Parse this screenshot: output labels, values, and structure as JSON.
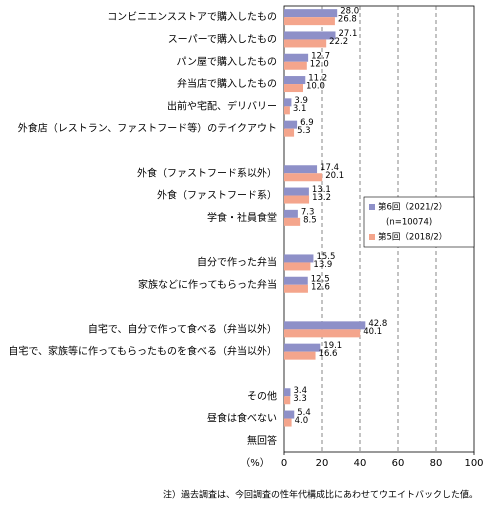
{
  "chart_data": {
    "type": "hbar",
    "categories": [
      "コンビニエンスストアで購入したもの",
      "スーパーで購入したもの",
      "パン屋で購入したもの",
      "弁当店で購入したもの",
      "出前や宅配、デリバリー",
      "外食店（レストラン、ファストフード等）のテイクアウト",
      null,
      "外食（ファストフード系以外）",
      "外食（ファストフード系）",
      "学食・社員食堂",
      null,
      "自分で作った弁当",
      "家族などに作ってもらった弁当",
      null,
      "自宅で、自分で作って食べる（弁当以外）",
      "自宅で、家族等に作ってもらったものを食べる（弁当以外）",
      null,
      "その他",
      "昼食は食べない",
      "無回答"
    ],
    "series": [
      {
        "name": "第6回（2021/2）",
        "color": "#8e90c8",
        "values": [
          28.0,
          27.1,
          12.7,
          11.2,
          3.9,
          6.9,
          null,
          17.4,
          13.1,
          7.3,
          null,
          15.5,
          12.5,
          null,
          42.8,
          19.1,
          null,
          3.4,
          5.4,
          null
        ],
        "value_labels": [
          "28.0",
          "27.1",
          "12.7",
          "11.2",
          "3.9",
          "6.9",
          null,
          "17.4",
          "13.1",
          "7.3",
          null,
          "15.5",
          "12.5",
          null,
          "42.8",
          "19.1",
          null,
          "3.4",
          "5.4",
          null
        ]
      },
      {
        "name": "第5回（2018/2）",
        "color": "#f4a58c",
        "values": [
          26.8,
          22.2,
          12.0,
          10.0,
          3.1,
          5.3,
          null,
          20.1,
          13.2,
          8.5,
          null,
          13.9,
          12.6,
          null,
          40.1,
          16.6,
          null,
          3.3,
          4.0,
          null
        ],
        "value_labels": [
          "26.8",
          "22.2",
          "12.0",
          "10.0",
          "3.1",
          "5.3",
          null,
          "20.1",
          "13.2",
          "8.5",
          null,
          "13.9",
          "12.6",
          null,
          "40.1",
          "16.6",
          null,
          "3.3",
          "4.0",
          null
        ]
      }
    ],
    "legend_note": "(n=10074)",
    "legend": "right",
    "x_label": "（%）",
    "xlim": [
      0,
      100
    ],
    "xticks": [
      0,
      20,
      40,
      60,
      80,
      100
    ],
    "grid": true,
    "footnote": "注）過去調査は、今回調査の性年代構成比にあわせてウエイトバックした値。"
  }
}
